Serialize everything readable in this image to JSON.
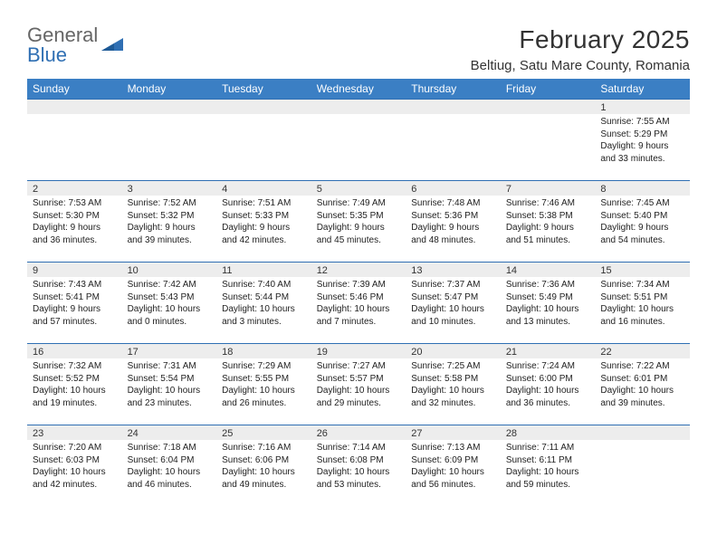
{
  "brand": {
    "part1": "General",
    "part2": "Blue"
  },
  "title": "February 2025",
  "location": "Beltiug, Satu Mare County, Romania",
  "colors": {
    "header_bg": "#3b7fc4",
    "header_text": "#ffffff",
    "rule": "#2f6fb3",
    "daynum_bg": "#ededed",
    "brand_gray": "#666666",
    "brand_blue": "#2f6fb3",
    "body_text": "#222222",
    "page_bg": "#ffffff"
  },
  "typography": {
    "month_title_pt": 28,
    "location_pt": 15,
    "weekday_header_pt": 12,
    "daynum_pt": 11,
    "cell_text_pt": 10
  },
  "weekdays": [
    "Sunday",
    "Monday",
    "Tuesday",
    "Wednesday",
    "Thursday",
    "Friday",
    "Saturday"
  ],
  "weeks": [
    [
      {
        "n": "",
        "sr": "",
        "ss": "",
        "dl": ""
      },
      {
        "n": "",
        "sr": "",
        "ss": "",
        "dl": ""
      },
      {
        "n": "",
        "sr": "",
        "ss": "",
        "dl": ""
      },
      {
        "n": "",
        "sr": "",
        "ss": "",
        "dl": ""
      },
      {
        "n": "",
        "sr": "",
        "ss": "",
        "dl": ""
      },
      {
        "n": "",
        "sr": "",
        "ss": "",
        "dl": ""
      },
      {
        "n": "1",
        "sr": "Sunrise: 7:55 AM",
        "ss": "Sunset: 5:29 PM",
        "dl": "Daylight: 9 hours and 33 minutes."
      }
    ],
    [
      {
        "n": "2",
        "sr": "Sunrise: 7:53 AM",
        "ss": "Sunset: 5:30 PM",
        "dl": "Daylight: 9 hours and 36 minutes."
      },
      {
        "n": "3",
        "sr": "Sunrise: 7:52 AM",
        "ss": "Sunset: 5:32 PM",
        "dl": "Daylight: 9 hours and 39 minutes."
      },
      {
        "n": "4",
        "sr": "Sunrise: 7:51 AM",
        "ss": "Sunset: 5:33 PM",
        "dl": "Daylight: 9 hours and 42 minutes."
      },
      {
        "n": "5",
        "sr": "Sunrise: 7:49 AM",
        "ss": "Sunset: 5:35 PM",
        "dl": "Daylight: 9 hours and 45 minutes."
      },
      {
        "n": "6",
        "sr": "Sunrise: 7:48 AM",
        "ss": "Sunset: 5:36 PM",
        "dl": "Daylight: 9 hours and 48 minutes."
      },
      {
        "n": "7",
        "sr": "Sunrise: 7:46 AM",
        "ss": "Sunset: 5:38 PM",
        "dl": "Daylight: 9 hours and 51 minutes."
      },
      {
        "n": "8",
        "sr": "Sunrise: 7:45 AM",
        "ss": "Sunset: 5:40 PM",
        "dl": "Daylight: 9 hours and 54 minutes."
      }
    ],
    [
      {
        "n": "9",
        "sr": "Sunrise: 7:43 AM",
        "ss": "Sunset: 5:41 PM",
        "dl": "Daylight: 9 hours and 57 minutes."
      },
      {
        "n": "10",
        "sr": "Sunrise: 7:42 AM",
        "ss": "Sunset: 5:43 PM",
        "dl": "Daylight: 10 hours and 0 minutes."
      },
      {
        "n": "11",
        "sr": "Sunrise: 7:40 AM",
        "ss": "Sunset: 5:44 PM",
        "dl": "Daylight: 10 hours and 3 minutes."
      },
      {
        "n": "12",
        "sr": "Sunrise: 7:39 AM",
        "ss": "Sunset: 5:46 PM",
        "dl": "Daylight: 10 hours and 7 minutes."
      },
      {
        "n": "13",
        "sr": "Sunrise: 7:37 AM",
        "ss": "Sunset: 5:47 PM",
        "dl": "Daylight: 10 hours and 10 minutes."
      },
      {
        "n": "14",
        "sr": "Sunrise: 7:36 AM",
        "ss": "Sunset: 5:49 PM",
        "dl": "Daylight: 10 hours and 13 minutes."
      },
      {
        "n": "15",
        "sr": "Sunrise: 7:34 AM",
        "ss": "Sunset: 5:51 PM",
        "dl": "Daylight: 10 hours and 16 minutes."
      }
    ],
    [
      {
        "n": "16",
        "sr": "Sunrise: 7:32 AM",
        "ss": "Sunset: 5:52 PM",
        "dl": "Daylight: 10 hours and 19 minutes."
      },
      {
        "n": "17",
        "sr": "Sunrise: 7:31 AM",
        "ss": "Sunset: 5:54 PM",
        "dl": "Daylight: 10 hours and 23 minutes."
      },
      {
        "n": "18",
        "sr": "Sunrise: 7:29 AM",
        "ss": "Sunset: 5:55 PM",
        "dl": "Daylight: 10 hours and 26 minutes."
      },
      {
        "n": "19",
        "sr": "Sunrise: 7:27 AM",
        "ss": "Sunset: 5:57 PM",
        "dl": "Daylight: 10 hours and 29 minutes."
      },
      {
        "n": "20",
        "sr": "Sunrise: 7:25 AM",
        "ss": "Sunset: 5:58 PM",
        "dl": "Daylight: 10 hours and 32 minutes."
      },
      {
        "n": "21",
        "sr": "Sunrise: 7:24 AM",
        "ss": "Sunset: 6:00 PM",
        "dl": "Daylight: 10 hours and 36 minutes."
      },
      {
        "n": "22",
        "sr": "Sunrise: 7:22 AM",
        "ss": "Sunset: 6:01 PM",
        "dl": "Daylight: 10 hours and 39 minutes."
      }
    ],
    [
      {
        "n": "23",
        "sr": "Sunrise: 7:20 AM",
        "ss": "Sunset: 6:03 PM",
        "dl": "Daylight: 10 hours and 42 minutes."
      },
      {
        "n": "24",
        "sr": "Sunrise: 7:18 AM",
        "ss": "Sunset: 6:04 PM",
        "dl": "Daylight: 10 hours and 46 minutes."
      },
      {
        "n": "25",
        "sr": "Sunrise: 7:16 AM",
        "ss": "Sunset: 6:06 PM",
        "dl": "Daylight: 10 hours and 49 minutes."
      },
      {
        "n": "26",
        "sr": "Sunrise: 7:14 AM",
        "ss": "Sunset: 6:08 PM",
        "dl": "Daylight: 10 hours and 53 minutes."
      },
      {
        "n": "27",
        "sr": "Sunrise: 7:13 AM",
        "ss": "Sunset: 6:09 PM",
        "dl": "Daylight: 10 hours and 56 minutes."
      },
      {
        "n": "28",
        "sr": "Sunrise: 7:11 AM",
        "ss": "Sunset: 6:11 PM",
        "dl": "Daylight: 10 hours and 59 minutes."
      },
      {
        "n": "",
        "sr": "",
        "ss": "",
        "dl": ""
      }
    ]
  ]
}
